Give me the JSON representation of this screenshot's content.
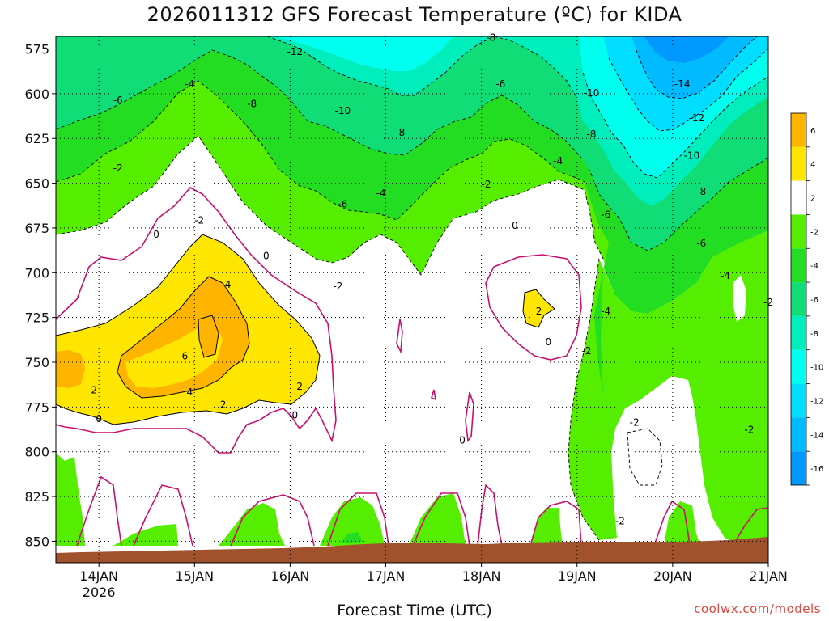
{
  "title": "2026011312 GFS Forecast Temperature (ºC) for KIDA",
  "xlabel": "Forecast Time (UTC)",
  "credit": "coolwx.com/models",
  "colors": {
    "orange": "#ffb400",
    "yellow": "#ffe600",
    "white": "#ffffff",
    "green_bright": "#55ee00",
    "green": "#22dd22",
    "green_teal": "#11dd77",
    "teal": "#00eebb",
    "cyan": "#00ffee",
    "sky": "#00ddff",
    "blue": "#00bbff",
    "blue_dark": "#0099ff",
    "ground": "#a0522d",
    "zero_line": "#c8106e"
  },
  "chart_data": {
    "type": "heatmap",
    "title": "2026011312 GFS Forecast Temperature (ºC) for KIDA",
    "xlabel": "Forecast Time (UTC)",
    "ylabel": "",
    "x_ticks": [
      {
        "label": "14JAN",
        "sub": "2026",
        "day": 14
      },
      {
        "label": "15JAN",
        "sub": "",
        "day": 15
      },
      {
        "label": "16JAN",
        "sub": "",
        "day": 16
      },
      {
        "label": "17JAN",
        "sub": "",
        "day": 17
      },
      {
        "label": "18JAN",
        "sub": "",
        "day": 18
      },
      {
        "label": "19JAN",
        "sub": "",
        "day": 19
      },
      {
        "label": "20JAN",
        "sub": "",
        "day": 20
      },
      {
        "label": "21JAN",
        "sub": "",
        "day": 21
      }
    ],
    "y_ticks": [
      575,
      600,
      625,
      650,
      675,
      700,
      725,
      750,
      775,
      800,
      825,
      850
    ],
    "x_range_days": [
      13.55,
      21.0
    ],
    "y_range_hpa": [
      568,
      862
    ],
    "grid": true,
    "colorbar": {
      "position": "right",
      "levels": [
        6,
        4,
        2,
        -2,
        -4,
        -6,
        -8,
        -10,
        -12,
        -14,
        -16
      ],
      "colors": [
        "#ffb400",
        "#ffe600",
        "#ffffff",
        "#55ee00",
        "#22dd22",
        "#11dd77",
        "#00eebb",
        "#00ffee",
        "#00ddff",
        "#00bbff",
        "#0099ff"
      ]
    },
    "contour_labels": [
      {
        "text": "-12",
        "day": 16.05,
        "p": 578
      },
      {
        "text": "-8",
        "day": 18.1,
        "p": 570
      },
      {
        "text": "-4",
        "day": 14.95,
        "p": 596
      },
      {
        "text": "-6",
        "day": 14.2,
        "p": 605
      },
      {
        "text": "-8",
        "day": 15.6,
        "p": 607
      },
      {
        "text": "-10",
        "day": 16.55,
        "p": 611
      },
      {
        "text": "-6",
        "day": 18.2,
        "p": 596
      },
      {
        "text": "-10",
        "day": 19.15,
        "p": 601
      },
      {
        "text": "-14",
        "day": 20.1,
        "p": 596
      },
      {
        "text": "-12",
        "day": 20.25,
        "p": 615
      },
      {
        "text": "-8",
        "day": 17.15,
        "p": 623
      },
      {
        "text": "-8",
        "day": 19.15,
        "p": 624
      },
      {
        "text": "-10",
        "day": 20.2,
        "p": 636
      },
      {
        "text": "-4",
        "day": 18.8,
        "p": 639
      },
      {
        "text": "-2",
        "day": 14.2,
        "p": 643
      },
      {
        "text": "-2",
        "day": 18.05,
        "p": 652
      },
      {
        "text": "-4",
        "day": 16.95,
        "p": 657
      },
      {
        "text": "-6",
        "day": 16.55,
        "p": 663
      },
      {
        "text": "-8",
        "day": 20.3,
        "p": 656
      },
      {
        "text": "-6",
        "day": 19.3,
        "p": 669
      },
      {
        "text": "-2",
        "day": 15.05,
        "p": 672
      },
      {
        "text": "0",
        "day": 14.6,
        "p": 680
      },
      {
        "text": "0",
        "day": 18.35,
        "p": 675
      },
      {
        "text": "-6",
        "day": 20.3,
        "p": 685
      },
      {
        "text": "0",
        "day": 15.75,
        "p": 692
      },
      {
        "text": "4",
        "day": 15.35,
        "p": 708
      },
      {
        "text": "-2",
        "day": 16.5,
        "p": 709
      },
      {
        "text": "-4",
        "day": 20.55,
        "p": 703
      },
      {
        "text": "-2",
        "day": 21.0,
        "p": 718
      },
      {
        "text": "2",
        "day": 18.6,
        "p": 723
      },
      {
        "text": "-4",
        "day": 19.3,
        "p": 723
      },
      {
        "text": "6",
        "day": 14.9,
        "p": 748
      },
      {
        "text": "0",
        "day": 18.7,
        "p": 740
      },
      {
        "text": "-2",
        "day": 19.1,
        "p": 745
      },
      {
        "text": "2",
        "day": 13.95,
        "p": 767
      },
      {
        "text": "4",
        "day": 14.95,
        "p": 768
      },
      {
        "text": "2",
        "day": 16.1,
        "p": 765
      },
      {
        "text": "2",
        "day": 15.3,
        "p": 775
      },
      {
        "text": "0",
        "day": 14.0,
        "p": 783
      },
      {
        "text": "0",
        "day": 16.05,
        "p": 781
      },
      {
        "text": "-2",
        "day": 19.6,
        "p": 785
      },
      {
        "text": "-2",
        "day": 20.8,
        "p": 789
      },
      {
        "text": "0",
        "day": 17.8,
        "p": 795
      },
      {
        "text": "-2",
        "day": 19.45,
        "p": 840
      }
    ]
  }
}
